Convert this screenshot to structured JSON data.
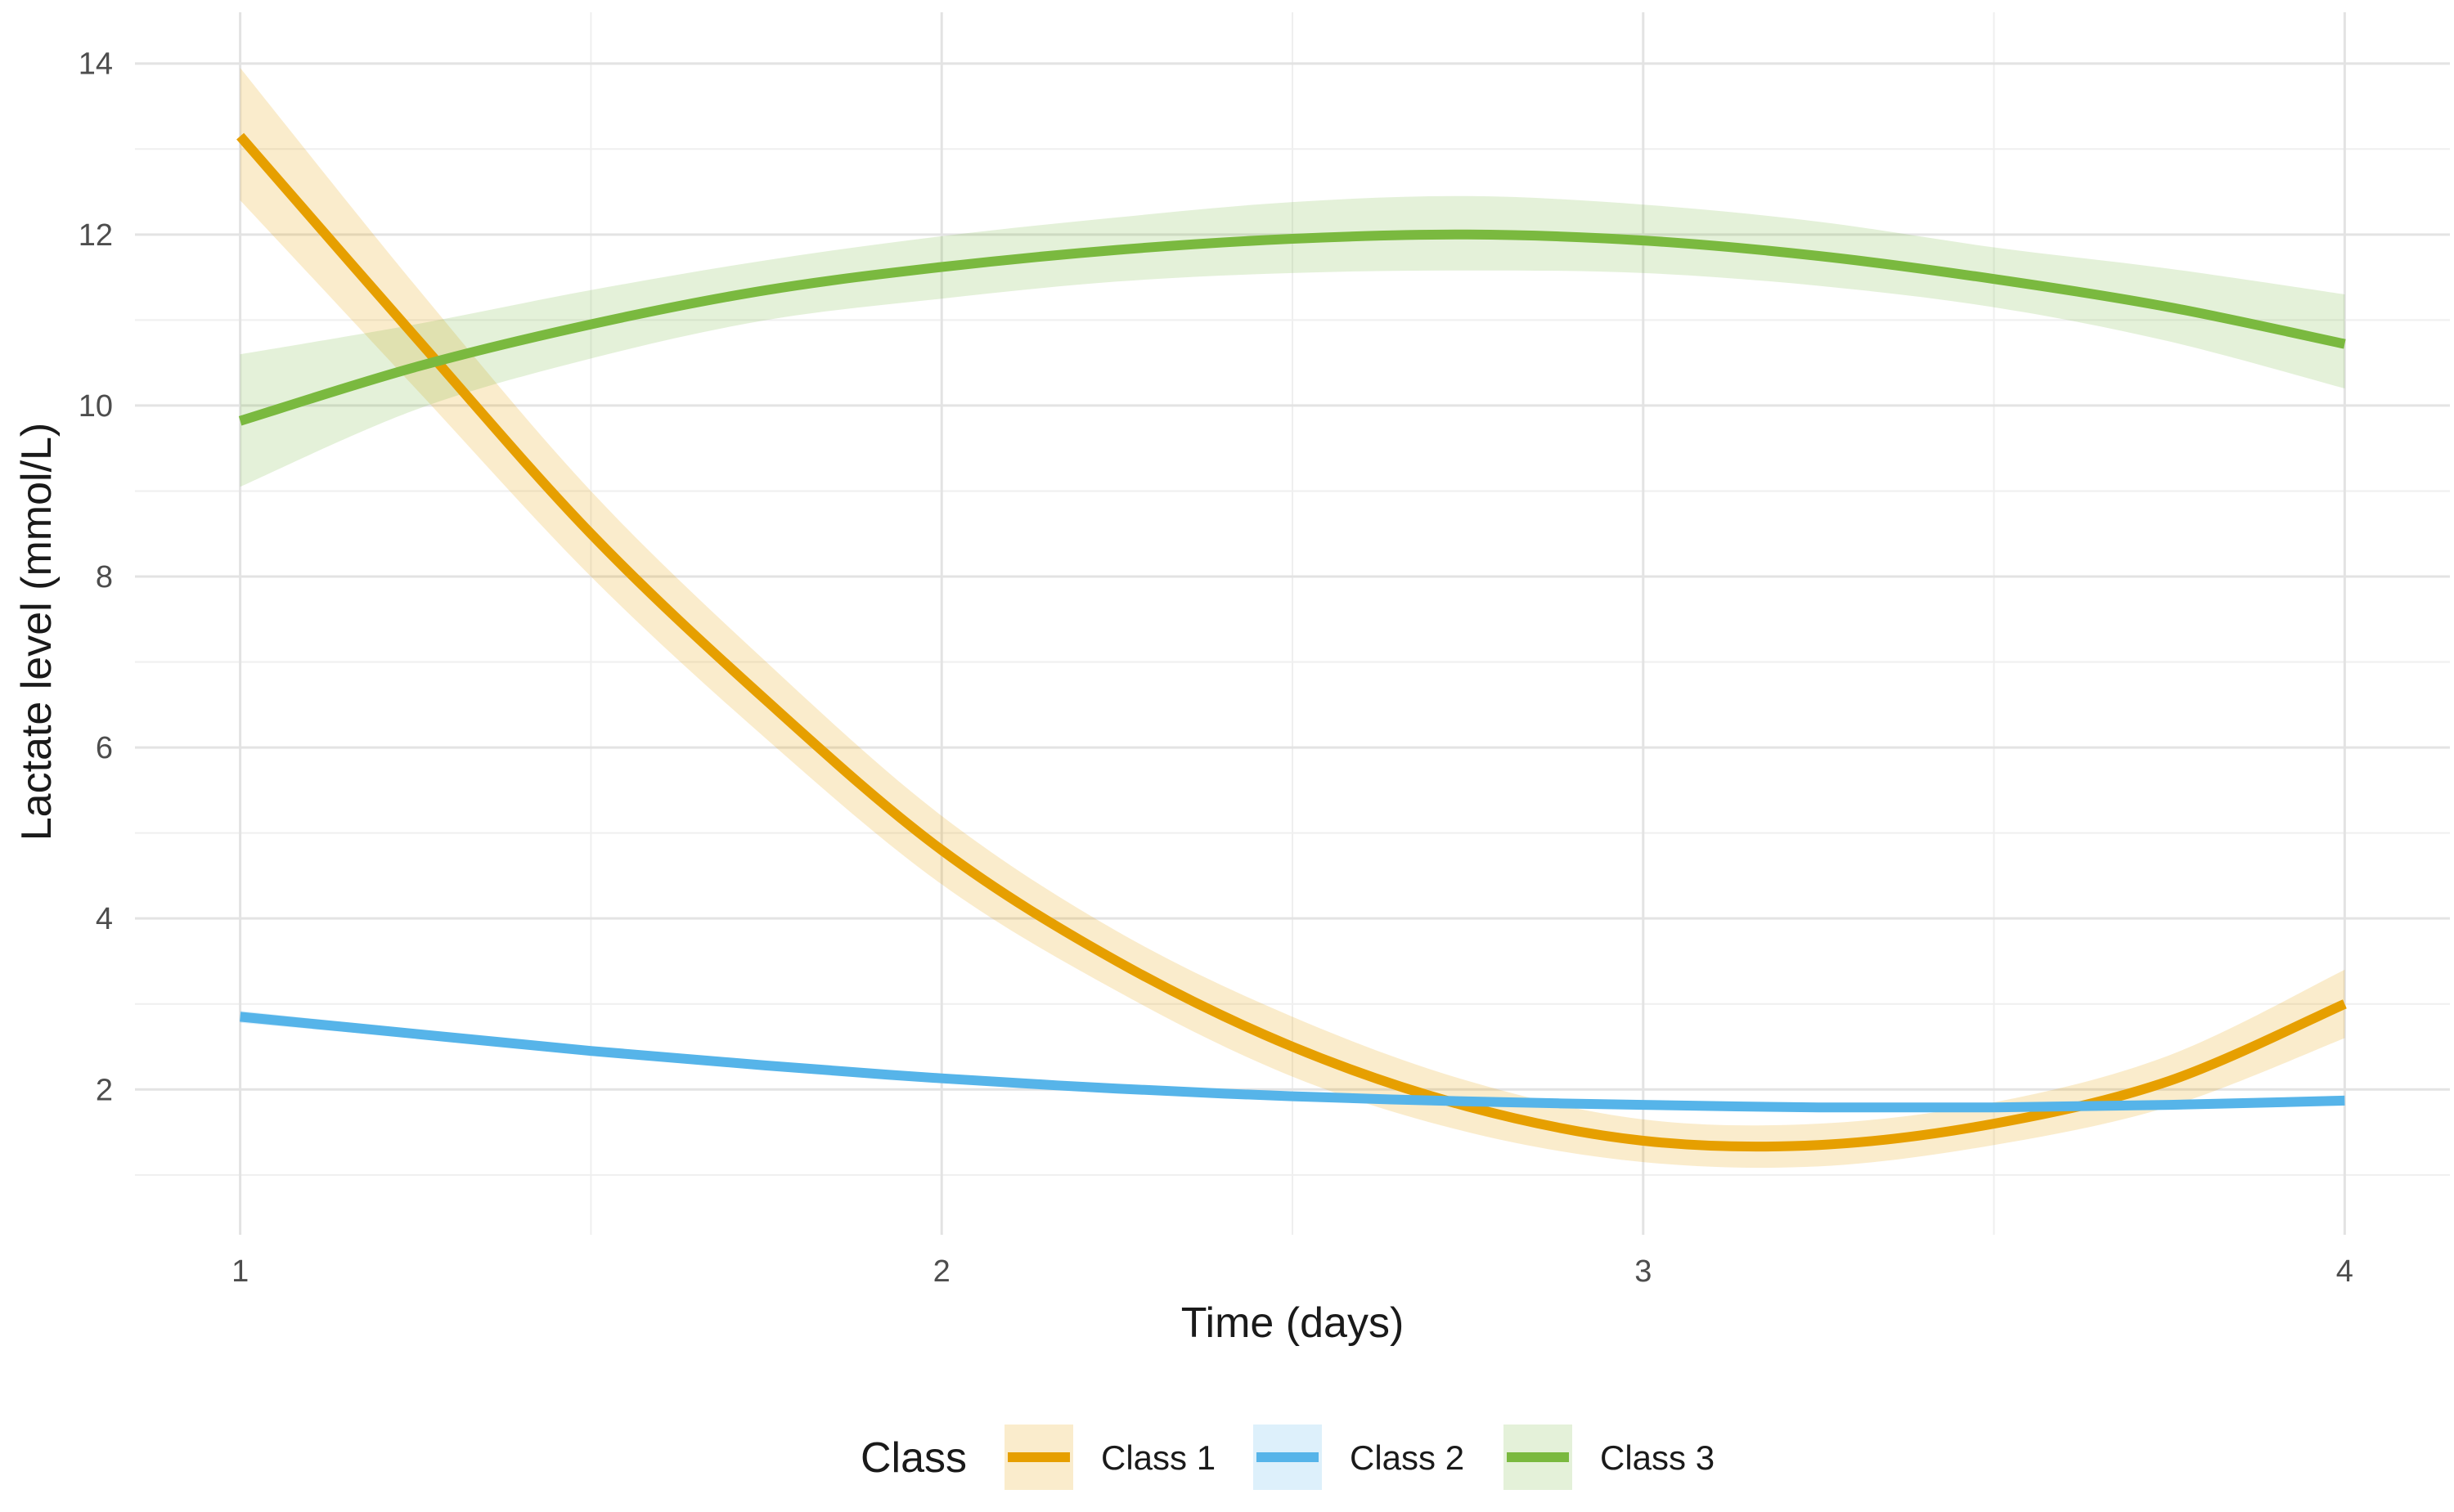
{
  "chart_data": {
    "type": "line",
    "title": "",
    "xlabel": "Time (days)",
    "ylabel": "Lactate level (mmol/L)",
    "xlim": [
      0.85,
      4.15
    ],
    "ylim": [
      0.3,
      14.6
    ],
    "x_ticks": [
      1,
      2,
      3,
      4
    ],
    "y_ticks": [
      2,
      4,
      6,
      8,
      10,
      12,
      14
    ],
    "grid": true,
    "legend": {
      "title": "Class",
      "position": "bottom"
    },
    "series": [
      {
        "name": "Class 1",
        "color": "#E69F00",
        "x": [
          1.0,
          1.25,
          1.5,
          1.75,
          2.0,
          2.25,
          2.5,
          2.75,
          3.0,
          3.25,
          3.5,
          3.75,
          4.0
        ],
        "y": [
          13.15,
          10.8,
          8.5,
          6.55,
          4.8,
          3.5,
          2.5,
          1.8,
          1.4,
          1.35,
          1.6,
          2.1,
          3.0
        ],
        "lower": [
          12.4,
          10.2,
          8.0,
          6.1,
          4.4,
          3.15,
          2.15,
          1.5,
          1.15,
          1.1,
          1.35,
          1.8,
          2.6
        ],
        "upper": [
          13.95,
          11.4,
          9.0,
          7.0,
          5.2,
          3.85,
          2.85,
          2.1,
          1.65,
          1.6,
          1.85,
          2.4,
          3.4
        ]
      },
      {
        "name": "Class 2",
        "color": "#56B4E9",
        "x": [
          1.0,
          1.25,
          1.5,
          1.75,
          2.0,
          2.25,
          2.5,
          2.75,
          3.0,
          3.25,
          3.5,
          3.75,
          4.0
        ],
        "y": [
          2.85,
          2.65,
          2.45,
          2.28,
          2.13,
          2.01,
          1.92,
          1.86,
          1.82,
          1.79,
          1.79,
          1.82,
          1.87
        ],
        "lower": [
          2.78,
          2.6,
          2.41,
          2.24,
          2.1,
          1.98,
          1.89,
          1.83,
          1.79,
          1.76,
          1.75,
          1.78,
          1.81
        ],
        "upper": [
          2.92,
          2.7,
          2.49,
          2.32,
          2.16,
          2.04,
          1.95,
          1.89,
          1.85,
          1.82,
          1.83,
          1.86,
          1.93
        ]
      },
      {
        "name": "Class 3",
        "color": "#7AB93F",
        "x": [
          1.0,
          1.25,
          1.5,
          1.75,
          2.0,
          2.25,
          2.5,
          2.75,
          3.0,
          3.25,
          3.5,
          3.75,
          4.0
        ],
        "y": [
          9.82,
          10.45,
          10.95,
          11.35,
          11.62,
          11.82,
          11.95,
          12.0,
          11.93,
          11.75,
          11.48,
          11.15,
          10.72
        ],
        "lower": [
          9.05,
          9.95,
          10.55,
          11.0,
          11.25,
          11.45,
          11.55,
          11.58,
          11.55,
          11.4,
          11.15,
          10.75,
          10.2
        ],
        "upper": [
          10.6,
          10.95,
          11.35,
          11.7,
          11.98,
          12.2,
          12.38,
          12.45,
          12.35,
          12.15,
          11.85,
          11.6,
          11.3
        ]
      }
    ]
  }
}
